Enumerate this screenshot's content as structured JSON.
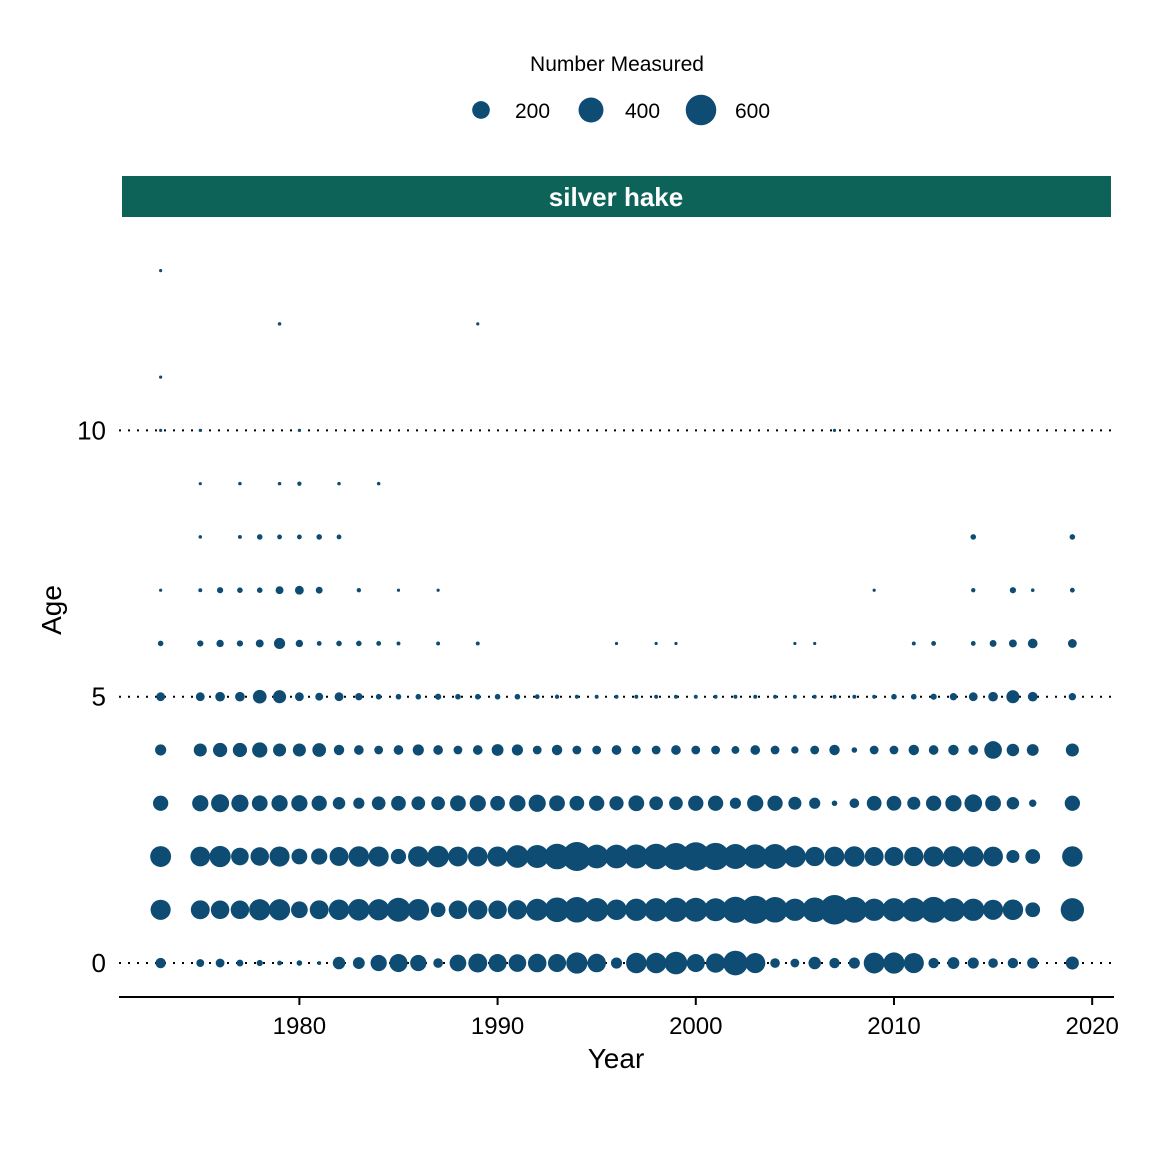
{
  "chart_data": {
    "type": "scatter",
    "title": "silver hake",
    "xlabel": "Year",
    "ylabel": "Age",
    "xlim": [
      1971,
      2021
    ],
    "ylim": [
      -0.6,
      13.8
    ],
    "x_ticks": [
      1980,
      1990,
      2000,
      2010,
      2020
    ],
    "y_ticks": [
      0,
      5,
      10
    ],
    "grid": "dotted horizontal lines at y ticks",
    "legend": {
      "title": "Number Measured",
      "position": "top",
      "entries": [
        {
          "label": "200",
          "value": 200
        },
        {
          "label": "400",
          "value": 400
        },
        {
          "label": "600",
          "value": 600
        }
      ]
    },
    "color": "#0e4c74",
    "strip_color": "#0e6358",
    "size_scale": {
      "max_value": 700
    },
    "rows": [
      {
        "age": 0,
        "x": [
          1973,
          1975,
          1976,
          1977,
          1978,
          1979,
          1980,
          1981,
          1982,
          1983,
          1984,
          1985,
          1986,
          1987,
          1988,
          1989,
          1990,
          1991,
          1992,
          1993,
          1994,
          1995,
          1996,
          1997,
          1998,
          1999,
          2000,
          2001,
          2002,
          2003,
          2004,
          2005,
          2006,
          2007,
          2008,
          2009,
          2010,
          2011,
          2012,
          2013,
          2014,
          2015,
          2016,
          2017,
          2019
        ],
        "n": [
          70,
          40,
          50,
          30,
          25,
          15,
          20,
          10,
          100,
          90,
          170,
          210,
          170,
          60,
          180,
          230,
          210,
          200,
          220,
          210,
          290,
          220,
          80,
          270,
          270,
          330,
          210,
          240,
          390,
          260,
          60,
          50,
          100,
          70,
          80,
          280,
          290,
          260,
          70,
          90,
          80,
          60,
          70,
          80,
          110
        ]
      },
      {
        "age": 1,
        "x": [
          1973,
          1975,
          1976,
          1977,
          1978,
          1979,
          1980,
          1981,
          1982,
          1983,
          1984,
          1985,
          1986,
          1987,
          1988,
          1989,
          1990,
          1991,
          1992,
          1993,
          1994,
          1995,
          1996,
          1997,
          1998,
          1999,
          2000,
          2001,
          2002,
          2003,
          2004,
          2005,
          2006,
          2007,
          2008,
          2009,
          2010,
          2011,
          2012,
          2013,
          2014,
          2015,
          2016,
          2017,
          2019
        ],
        "n": [
          260,
          230,
          220,
          220,
          290,
          290,
          180,
          230,
          270,
          300,
          290,
          370,
          300,
          140,
          220,
          240,
          220,
          240,
          310,
          390,
          420,
          360,
          270,
          320,
          350,
          380,
          370,
          340,
          440,
          510,
          420,
          320,
          390,
          560,
          430,
          320,
          350,
          370,
          430,
          360,
          320,
          260,
          270,
          140,
          350
        ]
      },
      {
        "age": 2,
        "x": [
          1973,
          1975,
          1976,
          1977,
          1978,
          1979,
          1980,
          1981,
          1982,
          1983,
          1984,
          1985,
          1986,
          1987,
          1988,
          1989,
          1990,
          1991,
          1992,
          1993,
          1994,
          1995,
          1996,
          1997,
          1998,
          1999,
          2000,
          2001,
          2002,
          2003,
          2004,
          2005,
          2006,
          2007,
          2008,
          2009,
          2010,
          2011,
          2012,
          2013,
          2014,
          2015,
          2016,
          2017,
          2019
        ],
        "n": [
          280,
          250,
          290,
          200,
          220,
          260,
          160,
          170,
          230,
          270,
          260,
          150,
          270,
          300,
          250,
          250,
          260,
          330,
          340,
          420,
          540,
          360,
          360,
          370,
          420,
          470,
          520,
          480,
          400,
          380,
          400,
          310,
          240,
          250,
          270,
          230,
          230,
          240,
          260,
          280,
          270,
          250,
          110,
          140,
          270
        ]
      },
      {
        "age": 3,
        "x": [
          1973,
          1975,
          1976,
          1977,
          1978,
          1979,
          1980,
          1981,
          1982,
          1983,
          1984,
          1985,
          1986,
          1987,
          1988,
          1989,
          1990,
          1991,
          1992,
          1993,
          1994,
          1995,
          1996,
          1997,
          1998,
          1999,
          2000,
          2001,
          2002,
          2003,
          2004,
          2005,
          2006,
          2007,
          2008,
          2009,
          2010,
          2011,
          2012,
          2013,
          2014,
          2015,
          2016,
          2017,
          2019
        ],
        "n": [
          150,
          170,
          210,
          190,
          160,
          170,
          170,
          150,
          100,
          80,
          120,
          140,
          120,
          120,
          160,
          170,
          140,
          170,
          190,
          160,
          140,
          150,
          130,
          160,
          120,
          120,
          150,
          150,
          80,
          170,
          150,
          110,
          80,
          20,
          60,
          140,
          140,
          110,
          150,
          170,
          200,
          160,
          100,
          35,
          150
        ]
      },
      {
        "age": 4,
        "x": [
          1973,
          1975,
          1976,
          1977,
          1978,
          1979,
          1980,
          1981,
          1982,
          1983,
          1984,
          1985,
          1986,
          1987,
          1988,
          1989,
          1990,
          1991,
          1992,
          1993,
          1994,
          1995,
          1996,
          1997,
          1998,
          1999,
          2000,
          2001,
          2002,
          2003,
          2004,
          2005,
          2006,
          2007,
          2008,
          2009,
          2010,
          2011,
          2012,
          2013,
          2014,
          2015,
          2016,
          2017,
          2019
        ],
        "n": [
          80,
          110,
          130,
          130,
          150,
          110,
          110,
          120,
          70,
          60,
          50,
          60,
          80,
          60,
          50,
          60,
          90,
          80,
          50,
          70,
          50,
          50,
          60,
          50,
          50,
          60,
          50,
          50,
          40,
          60,
          50,
          35,
          50,
          70,
          20,
          50,
          50,
          70,
          60,
          70,
          60,
          200,
          100,
          90,
          110
        ]
      },
      {
        "age": 5,
        "x": [
          1973,
          1975,
          1976,
          1977,
          1978,
          1979,
          1980,
          1981,
          1982,
          1983,
          1984,
          1985,
          1986,
          1987,
          1988,
          1989,
          1990,
          1991,
          1992,
          1993,
          1994,
          1995,
          1996,
          1997,
          1998,
          1999,
          2000,
          2001,
          2002,
          2003,
          2004,
          2005,
          2006,
          2007,
          2008,
          2009,
          2010,
          2011,
          2012,
          2013,
          2014,
          2015,
          2016,
          2017,
          2019
        ],
        "n": [
          50,
          50,
          60,
          60,
          120,
          110,
          50,
          40,
          50,
          35,
          20,
          20,
          20,
          25,
          20,
          20,
          20,
          20,
          15,
          12,
          10,
          10,
          10,
          10,
          10,
          10,
          10,
          10,
          10,
          10,
          10,
          10,
          10,
          10,
          10,
          10,
          20,
          20,
          25,
          35,
          50,
          60,
          110,
          60,
          35
        ]
      },
      {
        "age": 6,
        "x": [
          1973,
          1975,
          1976,
          1977,
          1978,
          1979,
          1980,
          1981,
          1982,
          1983,
          1984,
          1985,
          1987,
          1989,
          1996,
          1998,
          1999,
          2005,
          2006,
          2011,
          2012,
          2014,
          2015,
          2016,
          2017,
          2019
        ],
        "n": [
          20,
          25,
          35,
          25,
          40,
          80,
          35,
          15,
          20,
          20,
          15,
          10,
          10,
          10,
          6,
          6,
          6,
          6,
          6,
          10,
          15,
          15,
          30,
          40,
          60,
          50
        ]
      },
      {
        "age": 7,
        "x": [
          1973,
          1975,
          1976,
          1977,
          1978,
          1979,
          1980,
          1981,
          1983,
          1985,
          1987,
          2009,
          2014,
          2016,
          2017,
          2019
        ],
        "n": [
          5,
          10,
          25,
          20,
          20,
          40,
          50,
          30,
          12,
          6,
          6,
          6,
          12,
          25,
          8,
          15
        ]
      },
      {
        "age": 8,
        "x": [
          1975,
          1977,
          1978,
          1979,
          1980,
          1981,
          1982,
          2014,
          2019
        ],
        "n": [
          8,
          10,
          20,
          15,
          15,
          20,
          15,
          20,
          20
        ]
      },
      {
        "age": 9,
        "x": [
          1975,
          1977,
          1979,
          1980,
          1982,
          1984
        ],
        "n": [
          6,
          8,
          8,
          12,
          8,
          8
        ]
      },
      {
        "age": 10,
        "x": [
          1973,
          1975,
          1980,
          2007
        ],
        "n": [
          6,
          4,
          6,
          3
        ]
      },
      {
        "age": 11,
        "x": [
          1973
        ],
        "n": [
          6
        ]
      },
      {
        "age": 12,
        "x": [
          1979,
          1989
        ],
        "n": [
          8,
          6
        ]
      },
      {
        "age": 13,
        "x": [
          1973
        ],
        "n": [
          6
        ]
      }
    ]
  }
}
